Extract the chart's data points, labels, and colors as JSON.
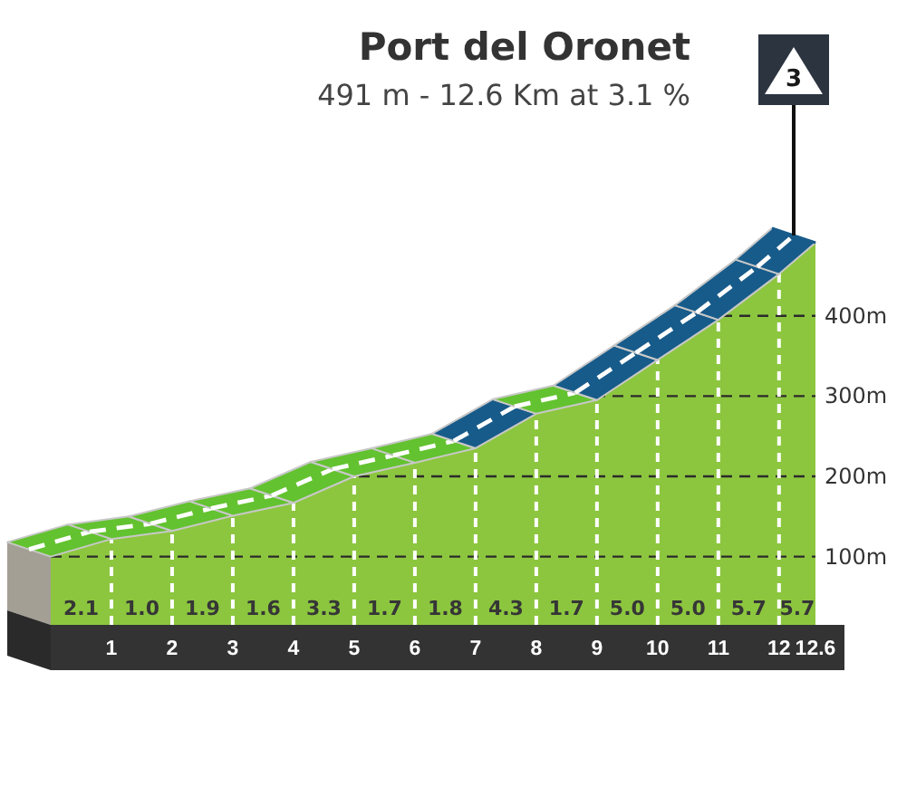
{
  "chart_data": {
    "type": "area",
    "title": "Port del Oronet",
    "subtitle": "491 m - 12.6 Km at 3.1 %",
    "x": [
      0,
      1,
      2,
      3,
      4,
      5,
      6,
      7,
      8,
      9,
      10,
      11,
      12,
      12.6
    ],
    "values": [
      100,
      122,
      132,
      151,
      167,
      200,
      217,
      235,
      278,
      295,
      345,
      395,
      452,
      491
    ],
    "color": "#8cc63f",
    "colors": [
      "#63c22f",
      "#63c22f",
      "#63c22f",
      "#63c22f",
      "#63c22f",
      "#63c22f",
      "#63c22f",
      "#175b8a",
      "#63c22f",
      "#175b8a",
      "#175b8a",
      "#175b8a",
      "#175b8a",
      "#175b8a"
    ],
    "xlim": [
      0,
      12.6
    ],
    "xticks": [
      1,
      2,
      3,
      4,
      5,
      6,
      7,
      8,
      9,
      10,
      11,
      12,
      12.6
    ],
    "ylim": [
      15,
      491
    ],
    "yticks": [
      {
        "value": 100,
        "label": "100m"
      },
      {
        "value": 200,
        "label": "200m"
      },
      {
        "value": 300,
        "label": "300m"
      },
      {
        "value": 400,
        "label": "400m"
      }
    ],
    "grid": true,
    "annotations": [
      "2.1",
      "1.0",
      "1.9",
      "1.6",
      "3.3",
      "1.7",
      "1.8",
      "4.3",
      "1.7",
      "5.0",
      "5.0",
      "5.7",
      "5.7",
      "3"
    ]
  }
}
